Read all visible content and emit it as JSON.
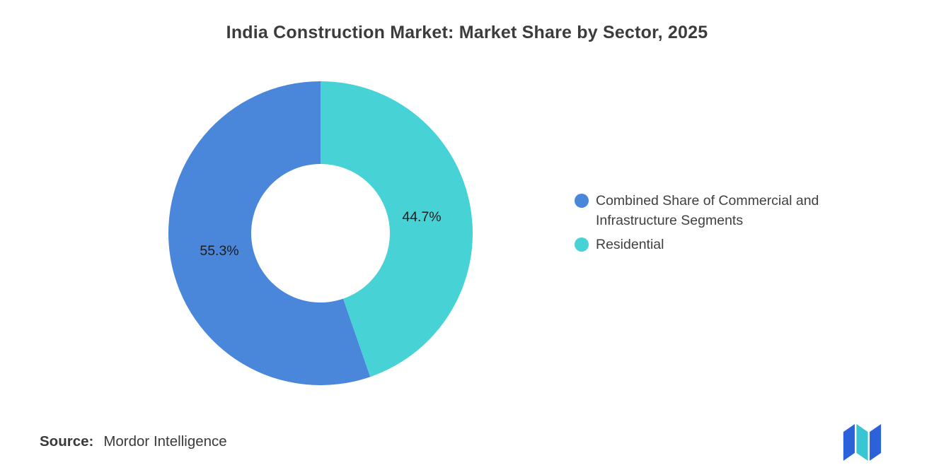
{
  "title": "India Construction Market: Market Share by Sector, 2025",
  "source": {
    "label": "Source:",
    "value": "Mordor Intelligence"
  },
  "logo": {
    "blue": "#2B62D9",
    "teal": "#38C6D4"
  },
  "chart_data": {
    "type": "pie",
    "variant": "donut",
    "title": "India Construction Market: Market Share by Sector, 2025",
    "legend_position": "right",
    "slices": [
      {
        "label": "Combined Share of Commercial and Infrastructure Segments",
        "value": 55.3,
        "display": "55.3%",
        "color": "#4A87DB"
      },
      {
        "label": "Residential",
        "value": 44.7,
        "display": "44.7%",
        "color": "#47D3D6"
      }
    ]
  }
}
